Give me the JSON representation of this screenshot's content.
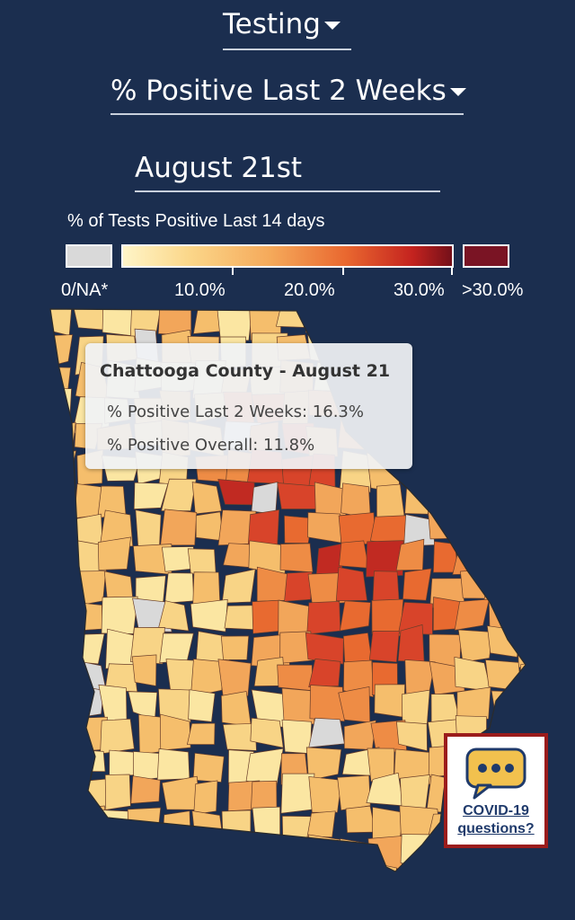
{
  "controls": {
    "category_selector": "Testing",
    "metric_selector": "% Positive Last 2 Weeks",
    "date_selector": "August 21st"
  },
  "legend": {
    "title": "% of Tests Positive Last 14 days",
    "labels": [
      "0/NA*",
      "10.0%",
      "20.0%",
      "30.0%",
      ">30.0%"
    ],
    "colors": {
      "na": "#d9d9d9",
      "low": "#fff5c8",
      "mid": "#f5a95a",
      "high": "#c4231f",
      "max": "#7a1424"
    }
  },
  "tooltip": {
    "title": "Chattooga County - August 21",
    "line1": "% Positive Last 2 Weeks: 16.3%",
    "line2": "% Positive Overall: 11.8%"
  },
  "help_widget": {
    "icon": "chat-bubble-icon",
    "line1": "COVID-19",
    "line2": "questions?"
  }
}
